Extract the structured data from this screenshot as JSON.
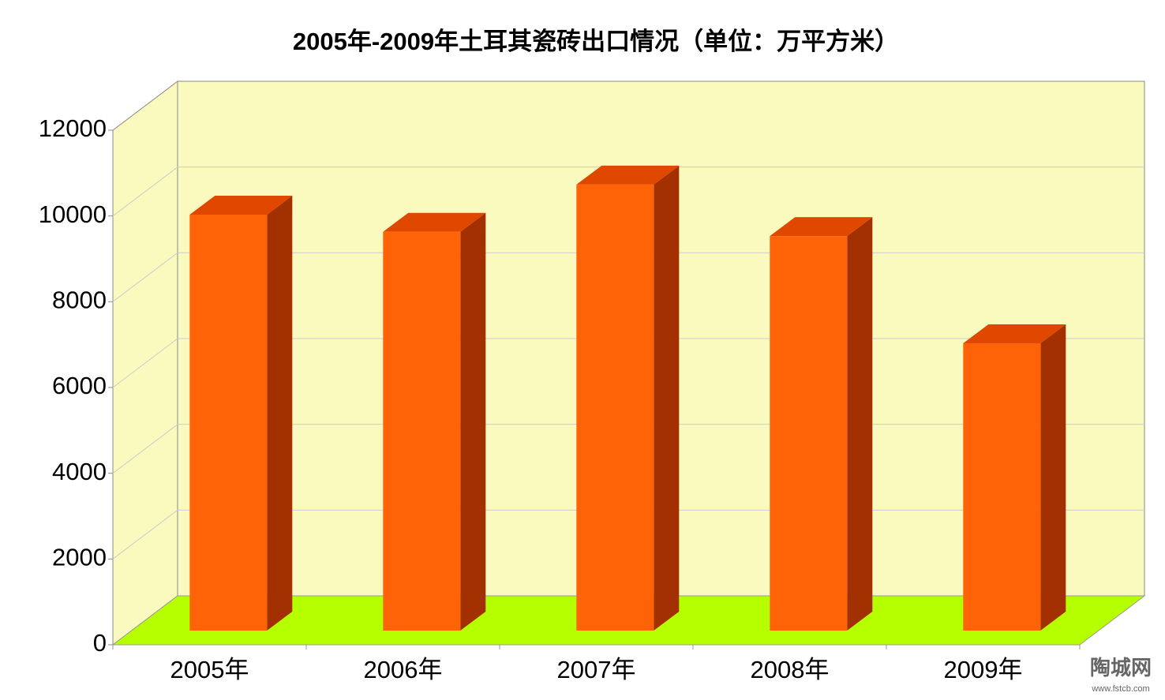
{
  "chart_data": {
    "type": "bar3d",
    "title": "2005年-2009年土耳其瓷砖出口情况（单位：万平方米）",
    "categories": [
      "2005年",
      "2006年",
      "2007年",
      "2008年",
      "2009年"
    ],
    "values": [
      9700,
      9300,
      10400,
      9200,
      6700
    ],
    "color": "#ff6308",
    "ylim": [
      0,
      12000
    ],
    "yticks": [
      0,
      2000,
      4000,
      6000,
      8000,
      10000,
      12000
    ],
    "grid": true,
    "watermark": "陶城网",
    "watermark_url": "www.fstcb.com"
  }
}
